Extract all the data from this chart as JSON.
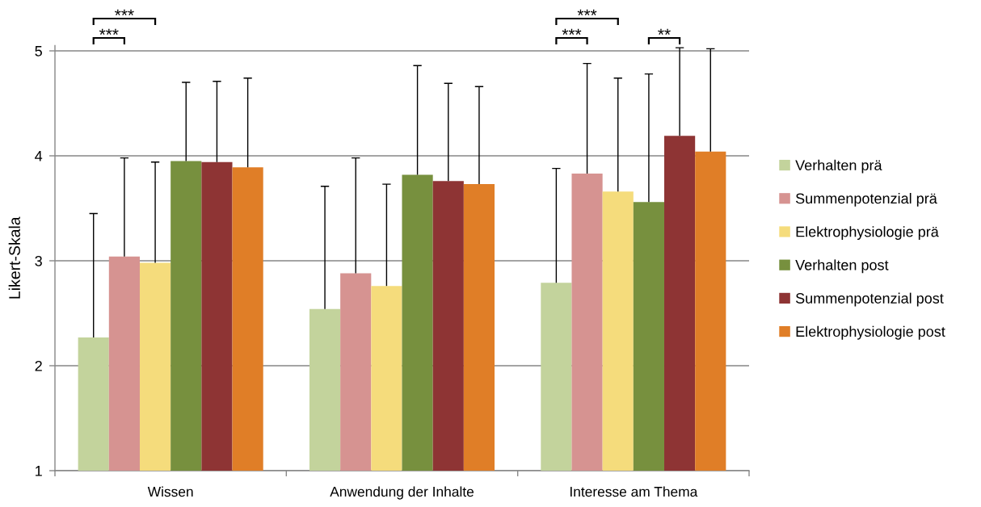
{
  "chart_data": {
    "type": "bar",
    "categories": [
      "Wissen",
      "Anwendung der Inhalte",
      "Interesse am Thema"
    ],
    "ylabel": "Likert-Skala",
    "ylim": [
      1,
      5.05
    ],
    "yticks": [
      1,
      2,
      3,
      4,
      5
    ],
    "grid": "y",
    "legend": "right",
    "series": [
      {
        "name": "Verhalten prä",
        "color": "#c3d39c",
        "values": [
          2.27,
          2.54,
          2.79
        ],
        "errors": [
          [
            2.27,
            3.45
          ],
          [
            2.54,
            3.71
          ],
          [
            2.79,
            3.88
          ]
        ]
      },
      {
        "name": "Summenpotenzial prä",
        "color": "#d69391",
        "values": [
          3.04,
          2.88,
          3.83
        ],
        "errors": [
          [
            3.04,
            3.98
          ],
          [
            2.88,
            3.98
          ],
          [
            3.83,
            4.88
          ]
        ]
      },
      {
        "name": "Elektrophysiologie prä",
        "color": "#f5dc7c",
        "values": [
          2.98,
          2.76,
          3.66
        ],
        "errors": [
          [
            2.98,
            3.94
          ],
          [
            2.76,
            3.73
          ],
          [
            3.66,
            4.74
          ]
        ]
      },
      {
        "name": "Verhalten post",
        "color": "#77903e",
        "values": [
          3.95,
          3.82,
          3.56
        ],
        "errors": [
          [
            3.95,
            4.7
          ],
          [
            3.82,
            4.86
          ],
          [
            3.56,
            4.78
          ]
        ]
      },
      {
        "name": "Summenpotenzial post",
        "color": "#8e3434",
        "values": [
          3.94,
          3.76,
          4.19
        ],
        "errors": [
          [
            3.94,
            4.71
          ],
          [
            3.76,
            4.69
          ],
          [
            4.19,
            5.03
          ]
        ]
      },
      {
        "name": "Elektrophysiologie post",
        "color": "#e07e27",
        "values": [
          3.89,
          3.73,
          4.04
        ],
        "errors": [
          [
            3.89,
            4.74
          ],
          [
            3.73,
            4.66
          ],
          [
            4.04,
            5.02
          ]
        ]
      }
    ],
    "annotations": [
      "***",
      "***",
      "***",
      "***",
      "**"
    ]
  }
}
